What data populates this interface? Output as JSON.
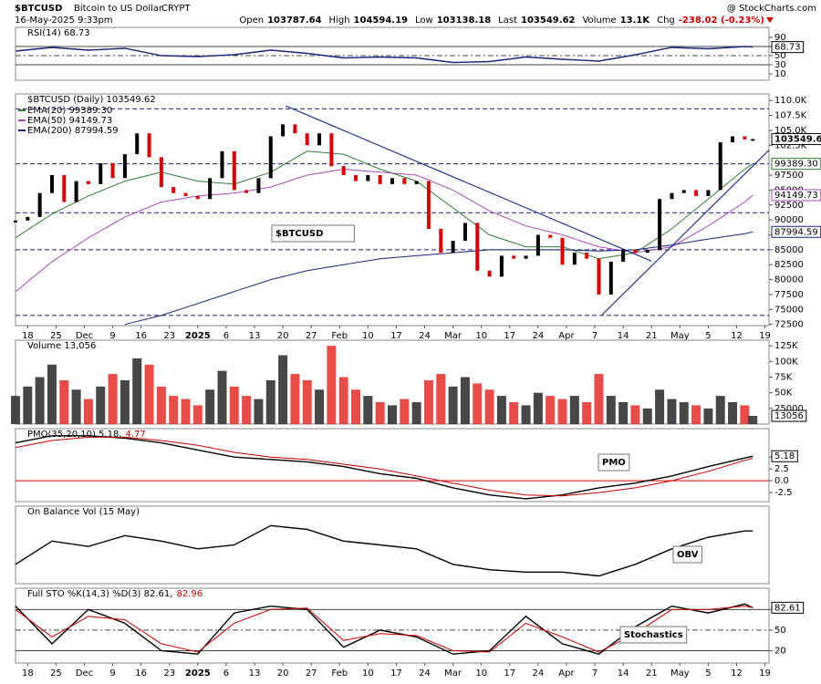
{
  "header": {
    "symbol": "$BTCUSD",
    "name": "Bitcoin to US Dollar",
    "exchange": "CRYPT",
    "date": "16-May-2025 9:33pm",
    "copyright": "@ StockCharts.com",
    "quote": [
      [
        "Open",
        "103787.64"
      ],
      [
        "High",
        "104594.19"
      ],
      [
        "Low",
        "103138.18"
      ],
      [
        "Last",
        "103549.62"
      ],
      [
        "Volume",
        "13.1K"
      ],
      [
        "Chg",
        "-238.02 (-0.23%)"
      ]
    ]
  },
  "chart_data": {
    "xlim": [
      0,
      186
    ],
    "xticks": [
      {
        "value": 3,
        "label": "18"
      },
      {
        "value": 10,
        "label": "25"
      },
      {
        "value": 17,
        "label": "Dec"
      },
      {
        "value": 24,
        "label": "9"
      },
      {
        "value": 31,
        "label": "16"
      },
      {
        "value": 38,
        "label": "23"
      },
      {
        "value": 45,
        "label": "2025"
      },
      {
        "value": 52,
        "label": "6"
      },
      {
        "value": 59,
        "label": "13"
      },
      {
        "value": 66,
        "label": "20"
      },
      {
        "value": 73,
        "label": "27"
      },
      {
        "value": 80,
        "label": "Feb"
      },
      {
        "value": 87,
        "label": "10"
      },
      {
        "value": 94,
        "label": "17"
      },
      {
        "value": 101,
        "label": "24"
      },
      {
        "value": 108,
        "label": "Mar"
      },
      {
        "value": 115,
        "label": "10"
      },
      {
        "value": 122,
        "label": "17"
      },
      {
        "value": 129,
        "label": "24"
      },
      {
        "value": 136,
        "label": "Apr"
      },
      {
        "value": 143,
        "label": "7"
      },
      {
        "value": 150,
        "label": "14"
      },
      {
        "value": 157,
        "label": "21"
      },
      {
        "value": 164,
        "label": "May"
      },
      {
        "value": 171,
        "label": "5"
      },
      {
        "value": 178,
        "label": "12"
      },
      {
        "value": 185,
        "label": "19"
      }
    ],
    "panels": [
      {
        "type": "line",
        "legend": [
          {
            "text": "RSI(14) 68.73",
            "color": "#000000"
          }
        ],
        "ylim": [
          -4,
          112
        ],
        "yticks": [
          90,
          70,
          50,
          30,
          10
        ],
        "levels": [
          70,
          50,
          30
        ],
        "x": [
          0,
          9,
          18,
          27,
          36,
          45,
          54,
          63,
          72,
          81,
          90,
          99,
          108,
          117,
          126,
          135,
          144,
          153,
          162,
          171,
          180,
          182
        ],
        "series": [
          {
            "color": "#1a237e",
            "box": true,
            "values": [
              60,
              68,
              62,
              66,
              50,
              48,
              52,
              62,
              55,
              45,
              47,
              45,
              35,
              37,
              47,
              42,
              38,
              52,
              68,
              65,
              70,
              68.73
            ]
          }
        ]
      },
      {
        "type": "price",
        "legend": [
          {
            "text": "$BTCUSD (Daily) 103549.62",
            "color": "#000000"
          }
        ],
        "tag": "$BTCUSD",
        "ylim": [
          72300,
          111100
        ],
        "yticks": [
          {
            "value": 110000,
            "label": "110.0K"
          },
          {
            "value": 107500,
            "label": "107.5K"
          },
          {
            "value": 105000,
            "label": "105.0K"
          },
          {
            "value": 102500,
            "label": "102.5K"
          },
          97500,
          95000,
          92500,
          90000,
          87500,
          85000,
          82500,
          80000,
          77500,
          75000,
          72500
        ],
        "hlines": [
          108600,
          99400,
          91200,
          85000,
          74000
        ],
        "trendlines": [
          [
            66.7,
            109100,
            157,
            83100
          ],
          [
            144.8,
            74100,
            186,
            101700
          ]
        ],
        "x": [
          0,
          3,
          6,
          9,
          12,
          15,
          18,
          21,
          24,
          27,
          30,
          33,
          36,
          39,
          42,
          45,
          48,
          51,
          54,
          57,
          60,
          63,
          66,
          69,
          72,
          75,
          78,
          81,
          84,
          87,
          90,
          93,
          96,
          99,
          102,
          105,
          108,
          111,
          114,
          117,
          120,
          123,
          126,
          129,
          132,
          135,
          138,
          141,
          144,
          147,
          150,
          153,
          156,
          159,
          162,
          165,
          168,
          171,
          174,
          177,
          180,
          182
        ],
        "values": [
          89900,
          90500,
          94500,
          97500,
          93000,
          96500,
          96000,
          99500,
          97000,
          101000,
          104500,
          100500,
          95500,
          94500,
          94000,
          93500,
          97000,
          101500,
          95000,
          94500,
          97000,
          104000,
          106000,
          104500,
          102500,
          104500,
          99000,
          97500,
          96500,
          97500,
          96000,
          97000,
          96000,
          96500,
          88500,
          84500,
          86500,
          89500,
          81500,
          80500,
          84000,
          83500,
          84000,
          87500,
          87000,
          82500,
          84500,
          83500,
          77500,
          83000,
          85000,
          84500,
          85000,
          93500,
          94500,
          95000,
          94000,
          95000,
          103000,
          104000,
          103500,
          103549.62
        ],
        "series": [
          {
            "name": "EMA(20) 99389.30",
            "color": "#2e7d32",
            "value_label": "99389.30",
            "x": [
              0,
              9,
              18,
              27,
              36,
              45,
              54,
              63,
              72,
              81,
              90,
              99,
              108,
              117,
              126,
              135,
              144,
              153,
              162,
              171,
              180,
              182
            ],
            "values": [
              87000,
              91000,
              94000,
              96500,
              98000,
              96500,
              96000,
              98000,
              101500,
              101000,
              98500,
              96500,
              92000,
              87500,
              85500,
              85500,
              83500,
              84500,
              88500,
              93500,
              98500,
              99389.3
            ]
          },
          {
            "name": "EMA(50) 94149.73",
            "color": "#ab47bc",
            "value_label": "94149.73",
            "x": [
              0,
              9,
              18,
              27,
              36,
              45,
              54,
              63,
              72,
              81,
              90,
              99,
              108,
              117,
              126,
              135,
              144,
              153,
              162,
              171,
              180,
              182
            ],
            "values": [
              78000,
              83000,
              87000,
              90500,
              93000,
              94000,
              94500,
              95500,
              97500,
              98500,
              98000,
              97500,
              95000,
              91500,
              89000,
              87500,
              85500,
              84500,
              85500,
              89000,
              93000,
              94149.73
            ]
          },
          {
            "name": "EMA(200) 87994.59",
            "color": "#1a237e",
            "value_label": "87994.59",
            "x": [
              27,
              36,
              45,
              54,
              63,
              72,
              81,
              90,
              99,
              108,
              117,
              126,
              135,
              144,
              153,
              162,
              171,
              180,
              182
            ],
            "values": [
              72500,
              74000,
              76000,
              78000,
              80000,
              81500,
              82500,
              83500,
              84000,
              84500,
              85000,
              85000,
              85000,
              84800,
              85000,
              85800,
              86800,
              87700,
              87994.59
            ]
          }
        ]
      },
      {
        "type": "volume",
        "legend": [
          {
            "text": "Volume 13,056",
            "color": "#000000"
          }
        ],
        "ylim": [
          0,
          134000
        ],
        "yticks": [
          {
            "value": 125000,
            "label": "125K"
          },
          {
            "value": 100000,
            "label": "100K"
          },
          {
            "value": 75000,
            "label": "75K"
          },
          {
            "value": 50000,
            "label": "50K"
          },
          25000
        ],
        "x": [
          0,
          3,
          6,
          9,
          12,
          15,
          18,
          21,
          24,
          27,
          30,
          33,
          36,
          39,
          42,
          45,
          48,
          51,
          54,
          57,
          60,
          63,
          66,
          69,
          72,
          75,
          78,
          81,
          84,
          87,
          90,
          93,
          96,
          99,
          102,
          105,
          108,
          111,
          114,
          117,
          120,
          123,
          126,
          129,
          132,
          135,
          138,
          141,
          144,
          147,
          150,
          153,
          156,
          159,
          162,
          165,
          168,
          171,
          174,
          177,
          180,
          182
        ],
        "values": [
          45000,
          60000,
          75000,
          95000,
          70000,
          55000,
          40000,
          60000,
          80000,
          70000,
          105000,
          95000,
          60000,
          45000,
          40000,
          30000,
          55000,
          85000,
          60000,
          45000,
          40000,
          70000,
          110000,
          80000,
          70000,
          55000,
          125000,
          75000,
          55000,
          45000,
          35000,
          30000,
          40000,
          35000,
          70000,
          80000,
          60000,
          75000,
          65000,
          55000,
          45000,
          35000,
          30000,
          50000,
          45000,
          40000,
          45000,
          35000,
          80000,
          45000,
          35000,
          30000,
          25000,
          55000,
          40000,
          35000,
          30000,
          25000,
          45000,
          35000,
          30000,
          13056
        ]
      },
      {
        "type": "line",
        "legend": [
          {
            "text": "PMO(35,20,10) 5.18,",
            "color": "#000000"
          },
          {
            "text": "4.77",
            "color": "#cc0000"
          }
        ],
        "tag": "PMO",
        "ylim": [
          -4.4,
          11
        ],
        "yticks": [
          {
            "value": 5,
            "label": "5.0"
          },
          {
            "value": 2.5,
            "label": "2.5"
          },
          {
            "value": 0,
            "label": "0.0"
          },
          {
            "value": -2.5,
            "label": "-2.5"
          }
        ],
        "zero_line": "#cc0000",
        "x": [
          0,
          9,
          18,
          27,
          36,
          45,
          54,
          63,
          72,
          81,
          90,
          99,
          108,
          117,
          126,
          135,
          144,
          153,
          162,
          171,
          180,
          182
        ],
        "series": [
          {
            "color": "#000000",
            "box": true,
            "values": [
              8,
              9.5,
              9.5,
              9,
              8,
              6.5,
              5,
              4.5,
              4,
              3,
              1.5,
              0.5,
              -1.5,
              -3,
              -3.8,
              -3,
              -1.5,
              -0.5,
              1,
              3,
              4.8,
              5.18
            ]
          },
          {
            "color": "#cc0000",
            "values": [
              7,
              8.5,
              9.2,
              9.2,
              8.5,
              7.5,
              6,
              5,
              4.5,
              3.5,
              2.5,
              1,
              -0.5,
              -2,
              -3,
              -3.2,
              -2.5,
              -1.5,
              0,
              2,
              4.3,
              4.77
            ]
          }
        ]
      },
      {
        "type": "line",
        "legend": [
          {
            "text": "On Balance Vol (15 May)",
            "color": "#000000"
          }
        ],
        "tag": "OBV",
        "ylim": [
          0,
          100
        ],
        "yticks": [],
        "x": [
          0,
          9,
          18,
          27,
          36,
          45,
          54,
          63,
          72,
          81,
          90,
          99,
          108,
          117,
          126,
          135,
          144,
          153,
          162,
          171,
          180,
          182
        ],
        "series": [
          {
            "color": "#000000",
            "values": [
              25,
              55,
              48,
              62,
              55,
              45,
              50,
              75,
              70,
              55,
              50,
              45,
              25,
              18,
              15,
              15,
              10,
              25,
              45,
              60,
              68,
              68
            ]
          }
        ]
      },
      {
        "type": "line",
        "legend": [
          {
            "text": "Full STO %K(14,3) %D(3) 82.61,",
            "color": "#000000"
          },
          {
            "text": "82.96",
            "color": "#cc0000"
          }
        ],
        "tag": "Stochastics",
        "ylim": [
          2,
          111
        ],
        "yticks": [
          80,
          50,
          20
        ],
        "levels": [
          80,
          50,
          20
        ],
        "x": [
          0,
          9,
          18,
          27,
          36,
          45,
          54,
          63,
          72,
          81,
          90,
          99,
          108,
          117,
          126,
          135,
          144,
          153,
          162,
          171,
          180,
          182
        ],
        "series": [
          {
            "color": "#000000",
            "box": true,
            "values": [
              85,
              30,
              80,
              60,
              20,
              15,
              75,
              85,
              80,
              25,
              50,
              40,
              15,
              20,
              70,
              30,
              15,
              55,
              85,
              75,
              88,
              82.61
            ]
          },
          {
            "color": "#cc0000",
            "values": [
              80,
              40,
              70,
              65,
              30,
              18,
              60,
              80,
              82,
              35,
              45,
              42,
              20,
              18,
              60,
              40,
              18,
              45,
              80,
              80,
              85,
              82.96
            ]
          }
        ]
      }
    ]
  }
}
